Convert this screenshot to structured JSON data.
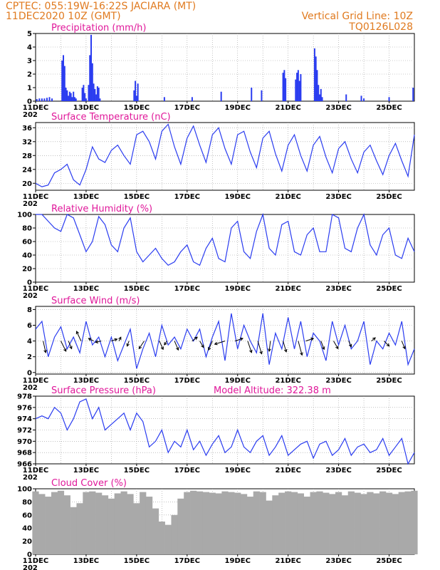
{
  "header": {
    "line1_left": "CPTEC:   055:19W-16:22S   JACIARA (MT)",
    "line2_left": "11DEC2020  10Z (GMT)",
    "line1_right": "Vertical Grid Line: 10Z",
    "line2_right": "TQ0126L028"
  },
  "colors": {
    "header": "#e07a1f",
    "panel_title": "#e0189a",
    "series": "#2a3cf0",
    "cloud": "#a9a9a9",
    "arrow": "#000000"
  },
  "x_axis": {
    "tick_labels": [
      "11DEC",
      "13DEC",
      "15DEC",
      "17DEC",
      "19DEC",
      "21DEC",
      "23DEC",
      "25DEC"
    ],
    "year_fragment": "202",
    "day_start": 0,
    "day_end": 15
  },
  "chart_data": [
    {
      "id": "precipitation",
      "type": "bar",
      "title": "Precipitation  (mm/h)",
      "ylim": [
        0,
        5
      ],
      "yticks": [
        "0",
        "1",
        "2",
        "3",
        "4",
        "5"
      ],
      "grid": true,
      "series": [
        {
          "x": [
            0.05,
            0.15,
            0.25,
            0.35,
            0.45,
            0.55,
            0.65,
            1.05,
            1.1,
            1.15,
            1.2,
            1.25,
            1.3,
            1.35,
            1.4,
            1.45,
            1.5,
            1.55,
            1.6,
            1.85,
            1.9,
            1.95,
            2.0,
            2.1,
            2.15,
            2.2,
            2.25,
            2.3,
            2.35,
            2.4,
            2.45,
            2.5,
            2.55,
            3.9,
            3.95,
            4.0,
            4.05,
            5.1,
            6.2,
            7.35,
            8.55,
            8.95,
            9.8,
            9.85,
            9.9,
            10.3,
            10.35,
            10.4,
            10.45,
            10.5,
            11.05,
            11.1,
            11.15,
            11.2,
            11.25,
            11.3,
            11.35,
            12.3,
            12.9,
            13.0,
            14.0,
            14.95
          ],
          "values": [
            0.15,
            0.2,
            0.2,
            0.2,
            0.25,
            0.3,
            0.2,
            3.0,
            3.4,
            2.6,
            1.0,
            0.8,
            0.4,
            0.7,
            0.6,
            0.3,
            0.7,
            0.3,
            0.2,
            1.0,
            1.2,
            0.6,
            0.2,
            1.2,
            3.4,
            4.9,
            2.8,
            1.3,
            0.9,
            0.5,
            1.1,
            1.0,
            0.2,
            0.8,
            1.5,
            0.4,
            1.3,
            0.3,
            0.3,
            0.7,
            1.0,
            0.8,
            2.1,
            2.3,
            1.7,
            1.6,
            2.1,
            2.3,
            1.5,
            2.0,
            3.9,
            3.3,
            2.3,
            1.2,
            0.5,
            0.9,
            0.3,
            0.5,
            0.4,
            0.2,
            0.3,
            1.0
          ]
        }
      ]
    },
    {
      "id": "temperature",
      "type": "line",
      "title": "Surface Temperature (nC)",
      "ylim": [
        18,
        37.5
      ],
      "yticks": [
        "20",
        "24",
        "28",
        "32",
        "36"
      ],
      "grid": true,
      "series": [
        {
          "x": [
            0,
            0.25,
            0.5,
            0.75,
            1.0,
            1.25,
            1.5,
            1.75,
            2.0,
            2.25,
            2.5,
            2.75,
            3.0,
            3.25,
            3.5,
            3.75,
            4.0,
            4.25,
            4.5,
            4.75,
            5.0,
            5.25,
            5.5,
            5.75,
            6.0,
            6.25,
            6.5,
            6.75,
            7.0,
            7.25,
            7.5,
            7.75,
            8.0,
            8.25,
            8.5,
            8.75,
            9.0,
            9.25,
            9.5,
            9.75,
            10.0,
            10.25,
            10.5,
            10.75,
            11.0,
            11.25,
            11.5,
            11.75,
            12.0,
            12.25,
            12.5,
            12.75,
            13.0,
            13.25,
            13.5,
            13.75,
            14.0,
            14.25,
            14.5,
            14.75,
            15.0
          ],
          "values": [
            20,
            19,
            19.5,
            23,
            24,
            25.5,
            21,
            19.5,
            24,
            30.5,
            27,
            26,
            29.5,
            31,
            28,
            25.5,
            34,
            35,
            32,
            27,
            35,
            37,
            30.5,
            25.5,
            33,
            36.5,
            31,
            26,
            34,
            36,
            30,
            25.5,
            34,
            35,
            29,
            24.5,
            33,
            35,
            28.5,
            23.5,
            31,
            34,
            28,
            23.5,
            31,
            33.5,
            27.5,
            23,
            30,
            32,
            27,
            23,
            29,
            31,
            26.5,
            22.5,
            28,
            31.5,
            26.5,
            22,
            34
          ]
        }
      ]
    },
    {
      "id": "humidity",
      "type": "line",
      "title": "Relative Humidity (%)",
      "ylim": [
        0,
        100
      ],
      "yticks": [
        "0",
        "20",
        "40",
        "60",
        "80",
        "100"
      ],
      "grid": true,
      "series": [
        {
          "x": [
            0,
            0.25,
            0.5,
            0.75,
            1.0,
            1.25,
            1.5,
            1.75,
            2.0,
            2.25,
            2.5,
            2.75,
            3.0,
            3.25,
            3.5,
            3.75,
            4.0,
            4.25,
            4.5,
            4.75,
            5.0,
            5.25,
            5.5,
            5.75,
            6.0,
            6.25,
            6.5,
            6.75,
            7.0,
            7.25,
            7.5,
            7.75,
            8.0,
            8.25,
            8.5,
            8.75,
            9.0,
            9.25,
            9.5,
            9.75,
            10.0,
            10.25,
            10.5,
            10.75,
            11.0,
            11.25,
            11.5,
            11.75,
            12.0,
            12.25,
            12.5,
            12.75,
            13.0,
            13.25,
            13.5,
            13.75,
            14.0,
            14.25,
            14.5,
            14.75,
            15.0
          ],
          "values": [
            100,
            100,
            90,
            80,
            75,
            100,
            95,
            70,
            45,
            60,
            97,
            85,
            55,
            45,
            80,
            95,
            45,
            30,
            40,
            50,
            35,
            25,
            30,
            45,
            55,
            30,
            25,
            50,
            65,
            35,
            30,
            80,
            90,
            45,
            35,
            75,
            100,
            50,
            40,
            85,
            90,
            45,
            40,
            70,
            80,
            45,
            45,
            100,
            95,
            50,
            45,
            80,
            100,
            55,
            40,
            70,
            80,
            40,
            35,
            65,
            45
          ]
        }
      ]
    },
    {
      "id": "wind",
      "type": "line",
      "title": "Surface Wind  (m/s)",
      "ylim": [
        -0.2,
        8.4
      ],
      "yticks": [
        "0",
        "2",
        "4",
        "6",
        "8"
      ],
      "grid": true,
      "series": [
        {
          "x": [
            0,
            0.25,
            0.5,
            0.75,
            1.0,
            1.25,
            1.5,
            1.75,
            2.0,
            2.25,
            2.5,
            2.75,
            3.0,
            3.25,
            3.5,
            3.75,
            4.0,
            4.25,
            4.5,
            4.75,
            5.0,
            5.25,
            5.5,
            5.75,
            6.0,
            6.25,
            6.5,
            6.75,
            7.0,
            7.25,
            7.5,
            7.75,
            8.0,
            8.25,
            8.5,
            8.75,
            9.0,
            9.25,
            9.5,
            9.75,
            10.0,
            10.25,
            10.5,
            10.75,
            11.0,
            11.25,
            11.5,
            11.75,
            12.0,
            12.25,
            12.5,
            12.75,
            13.0,
            13.25,
            13.5,
            13.75,
            14.0,
            14.25,
            14.5,
            14.75,
            15.0
          ],
          "values": [
            5.5,
            6.5,
            2.0,
            4.5,
            5.8,
            3.0,
            4.5,
            2.5,
            6.5,
            3.5,
            4.5,
            2.0,
            4.5,
            1.5,
            3.5,
            5.5,
            0.5,
            3.0,
            5.0,
            2.0,
            6.0,
            3.5,
            4.5,
            3.0,
            5.5,
            4.0,
            5.5,
            2.0,
            4.5,
            6.5,
            1.5,
            7.5,
            3.0,
            6.0,
            4.0,
            2.5,
            7.5,
            1.0,
            5.0,
            3.0,
            7.0,
            3.0,
            6.5,
            2.0,
            5.0,
            4.0,
            1.5,
            6.5,
            3.5,
            6.0,
            3.0,
            4.0,
            6.5,
            1.0,
            4.0,
            3.0,
            5.0,
            3.5,
            6.5,
            1.0,
            3.0
          ]
        }
      ],
      "wind_arrows": [
        {
          "x": 0.3,
          "u": 0.4,
          "v": -1.8
        },
        {
          "x": 1.0,
          "u": 0.8,
          "v": -1.6
        },
        {
          "x": 1.3,
          "u": 0.5,
          "v": -1.2
        },
        {
          "x": 1.8,
          "u": -0.7,
          "v": 1.5
        },
        {
          "x": 2.3,
          "u": -0.8,
          "v": 0.4
        },
        {
          "x": 2.6,
          "u": -0.9,
          "v": -0.2
        },
        {
          "x": 3.0,
          "u": 0.9,
          "v": 0.3
        },
        {
          "x": 3.3,
          "u": 0.3,
          "v": 0.6
        },
        {
          "x": 3.7,
          "u": -0.3,
          "v": -0.8
        },
        {
          "x": 4.3,
          "u": -0.8,
          "v": -1.2
        },
        {
          "x": 4.9,
          "u": 0.6,
          "v": -1.3
        },
        {
          "x": 5.2,
          "u": -0.4,
          "v": -0.6
        },
        {
          "x": 5.5,
          "u": 0.6,
          "v": -1.4
        },
        {
          "x": 6.2,
          "u": 0.8,
          "v": 0.6
        },
        {
          "x": 6.5,
          "u": 0.6,
          "v": -1.0
        },
        {
          "x": 7.0,
          "u": -0.6,
          "v": -1.4
        },
        {
          "x": 7.5,
          "u": -1.6,
          "v": -0.5
        },
        {
          "x": 7.9,
          "u": 1.2,
          "v": 0.4
        },
        {
          "x": 8.4,
          "u": 0.6,
          "v": -1.8
        },
        {
          "x": 8.8,
          "u": 0.6,
          "v": -2.0
        },
        {
          "x": 9.3,
          "u": -0.2,
          "v": -1.6
        },
        {
          "x": 9.8,
          "u": 0.5,
          "v": -1.7
        },
        {
          "x": 10.4,
          "u": 0.6,
          "v": -2.2
        },
        {
          "x": 10.7,
          "u": 1.2,
          "v": 0.4
        },
        {
          "x": 11.3,
          "u": 0.5,
          "v": -1.3
        },
        {
          "x": 11.8,
          "u": 0.7,
          "v": -1.2
        },
        {
          "x": 12.4,
          "u": 0.4,
          "v": -0.9
        },
        {
          "x": 13.3,
          "u": 0.6,
          "v": 0.5
        },
        {
          "x": 13.8,
          "u": 0.8,
          "v": -0.8
        },
        {
          "x": 14.5,
          "u": 0.5,
          "v": -1.2
        }
      ]
    },
    {
      "id": "pressure",
      "type": "line",
      "title": "Surface Pressure (hPa)",
      "annotation": "Model Altitude: 322.38 m",
      "ylim": [
        966,
        978
      ],
      "yticks": [
        "966",
        "968",
        "970",
        "972",
        "974",
        "976",
        "978"
      ],
      "grid": true,
      "series": [
        {
          "x": [
            0,
            0.25,
            0.5,
            0.75,
            1.0,
            1.25,
            1.5,
            1.75,
            2.0,
            2.25,
            2.5,
            2.75,
            3.0,
            3.25,
            3.5,
            3.75,
            4.0,
            4.25,
            4.5,
            4.75,
            5.0,
            5.25,
            5.5,
            5.75,
            6.0,
            6.25,
            6.5,
            6.75,
            7.0,
            7.25,
            7.5,
            7.75,
            8.0,
            8.25,
            8.5,
            8.75,
            9.0,
            9.25,
            9.5,
            9.75,
            10.0,
            10.25,
            10.5,
            10.75,
            11.0,
            11.25,
            11.5,
            11.75,
            12.0,
            12.25,
            12.5,
            12.75,
            13.0,
            13.25,
            13.5,
            13.75,
            14.0,
            14.25,
            14.5,
            14.75,
            15.0
          ],
          "values": [
            974,
            974.5,
            974,
            976,
            975,
            972,
            974,
            977,
            977.5,
            974,
            976,
            972,
            973,
            974,
            975,
            972,
            975,
            973.5,
            969,
            970,
            972,
            968,
            970,
            969,
            972,
            968.5,
            970,
            967.5,
            969.5,
            971,
            968,
            969,
            972,
            969,
            968,
            970,
            971,
            967.5,
            969,
            971,
            967.5,
            968.5,
            969.5,
            970,
            967,
            969.5,
            970,
            967.5,
            968.5,
            970.5,
            967.5,
            969,
            969.5,
            968,
            968.5,
            970.5,
            967.5,
            969,
            970.5,
            966,
            968
          ]
        }
      ]
    },
    {
      "id": "cloud",
      "type": "area",
      "title": "Cloud Cover (%)",
      "ylim": [
        0,
        100
      ],
      "yticks": [
        "0",
        "20",
        "40",
        "60",
        "80",
        "100"
      ],
      "grid": true,
      "series": [
        {
          "x": [
            0,
            0.25,
            0.5,
            0.75,
            1.0,
            1.25,
            1.5,
            1.75,
            2.0,
            2.25,
            2.5,
            2.75,
            3.0,
            3.25,
            3.5,
            3.75,
            4.0,
            4.25,
            4.5,
            4.75,
            5.0,
            5.25,
            5.5,
            5.75,
            6.0,
            6.25,
            6.5,
            6.75,
            7.0,
            7.25,
            7.5,
            7.75,
            8.0,
            8.25,
            8.5,
            8.75,
            9.0,
            9.25,
            9.5,
            9.75,
            10.0,
            10.25,
            10.5,
            10.75,
            11.0,
            11.25,
            11.5,
            11.75,
            12.0,
            12.25,
            12.5,
            12.75,
            13.0,
            13.25,
            13.5,
            13.75,
            14.0,
            14.25,
            14.5,
            14.75,
            15.0
          ],
          "values": [
            96,
            92,
            88,
            95,
            97,
            90,
            72,
            78,
            95,
            96,
            94,
            90,
            85,
            93,
            96,
            92,
            78,
            95,
            88,
            70,
            50,
            45,
            60,
            85,
            95,
            97,
            96,
            95,
            94,
            93,
            96,
            95,
            94,
            92,
            88,
            96,
            95,
            82,
            90,
            94,
            96,
            95,
            93,
            88,
            95,
            96,
            94,
            92,
            95,
            90,
            96,
            94,
            92,
            95,
            93,
            96,
            94,
            92,
            95,
            96,
            97
          ]
        }
      ]
    }
  ]
}
